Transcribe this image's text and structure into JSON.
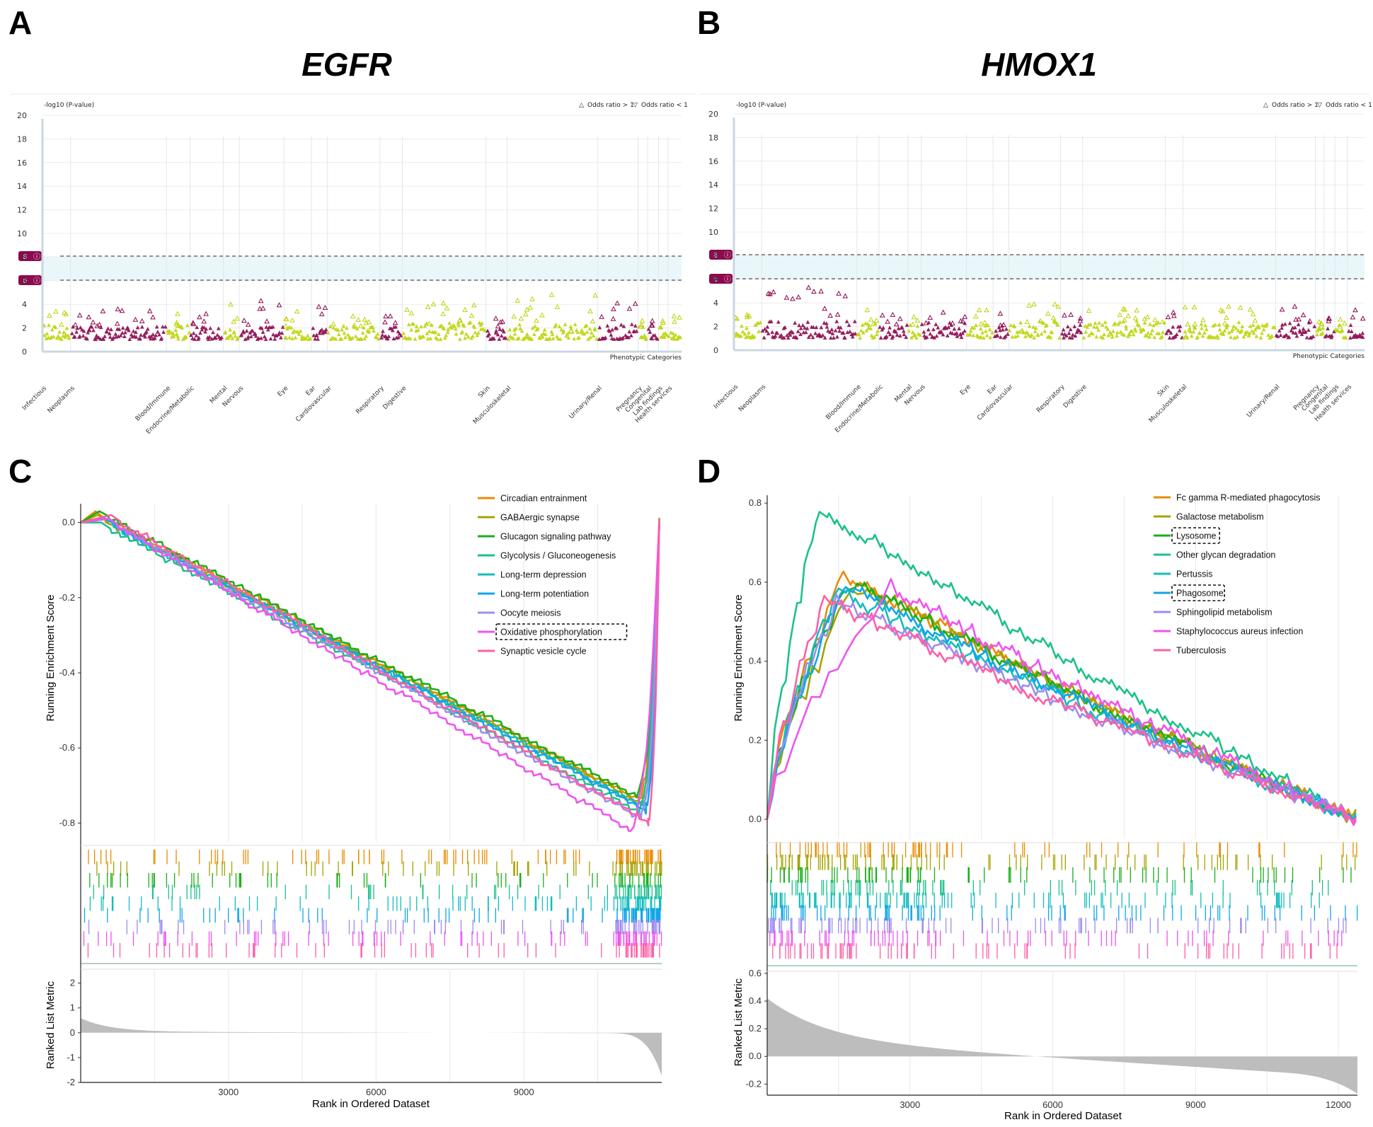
{
  "panels": {
    "A": {
      "label": "A",
      "gene": "EGFR"
    },
    "B": {
      "label": "B",
      "gene": "HMOX1"
    },
    "C": {
      "label": "C"
    },
    "D": {
      "label": "D"
    }
  },
  "phewas_common": {
    "ylabel": "-log10 (P-value)",
    "legend_up": "Odds ratio > 1",
    "legend_down": "Odds ratio < 1",
    "xlabel": "Phenotypic Categories",
    "threshold_high": "8",
    "threshold_low": "6",
    "colors": {
      "lime": "#bcd50a",
      "maroon": "#8c0a4e",
      "band": "#eaf7fa"
    }
  },
  "gsea_common": {
    "ylabel_top": "Running Enrichment Score",
    "ylabel_bottom": "Ranked List Metric",
    "xlabel": "Rank in Ordered Dataset"
  },
  "chart_data": [
    {
      "panel": "A",
      "type": "scatter",
      "title": "EGFR",
      "ylabel": "-log10 (P-value)",
      "xlabel": "Phenotypic Categories",
      "ylim": [
        0,
        20
      ],
      "yticks": [
        0,
        2,
        4,
        6,
        8,
        10,
        12,
        14,
        16,
        18,
        20
      ],
      "thresholds": [
        6,
        8
      ],
      "legend": [
        "Odds ratio > 1",
        "Odds ratio < 1"
      ],
      "categories": [
        {
          "name": "Infectious",
          "x": [
            0.0,
            0.044
          ],
          "color": "lime",
          "base": 2.2,
          "peak": 3.4
        },
        {
          "name": "Neoplasms",
          "x": [
            0.044,
            0.194
          ],
          "color": "maroon",
          "base": 2.0,
          "peak": 3.6
        },
        {
          "name": "Blood/Immune",
          "x": [
            0.194,
            0.231
          ],
          "color": "lime",
          "base": 2.2,
          "peak": 3.2
        },
        {
          "name": "Endocrine/Metabolic",
          "x": [
            0.231,
            0.283
          ],
          "color": "maroon",
          "base": 2.0,
          "peak": 3.2
        },
        {
          "name": "Mental",
          "x": [
            0.283,
            0.308
          ],
          "color": "lime",
          "base": 2.0,
          "peak": 4.0
        },
        {
          "name": "Nervous",
          "x": [
            0.308,
            0.378
          ],
          "color": "maroon",
          "base": 2.0,
          "peak": 4.3
        },
        {
          "name": "Eye",
          "x": [
            0.378,
            0.421
          ],
          "color": "lime",
          "base": 2.0,
          "peak": 3.4
        },
        {
          "name": "Ear",
          "x": [
            0.421,
            0.446
          ],
          "color": "maroon",
          "base": 2.0,
          "peak": 3.8
        },
        {
          "name": "Cardiovascular",
          "x": [
            0.446,
            0.528
          ],
          "color": "lime",
          "base": 2.1,
          "peak": 3.0
        },
        {
          "name": "Respiratory",
          "x": [
            0.528,
            0.563
          ],
          "color": "maroon",
          "base": 2.0,
          "peak": 3.0
        },
        {
          "name": "Digestive",
          "x": [
            0.563,
            0.694
          ],
          "color": "lime",
          "base": 2.3,
          "peak": 4.1
        },
        {
          "name": "Skin",
          "x": [
            0.694,
            0.727
          ],
          "color": "maroon",
          "base": 2.0,
          "peak": 2.8
        },
        {
          "name": "Musculoskeletal",
          "x": [
            0.727,
            0.869
          ],
          "color": "lime",
          "base": 2.2,
          "peak": 4.8
        },
        {
          "name": "Urinary/Renal",
          "x": [
            0.869,
            0.932
          ],
          "color": "maroon",
          "base": 2.2,
          "peak": 4.1
        },
        {
          "name": "Pregnancy",
          "x": [
            0.932,
            0.947
          ],
          "color": "lime",
          "base": 2.0,
          "peak": 2.6
        },
        {
          "name": "Congenital",
          "x": [
            0.947,
            0.964
          ],
          "color": "maroon",
          "base": 2.0,
          "peak": 2.6
        },
        {
          "name": "Lab findings",
          "x": [
            0.964,
            0.979
          ],
          "color": "lime",
          "base": 2.0,
          "peak": 2.6
        },
        {
          "name": "Health services",
          "x": [
            0.979,
            1.0
          ],
          "color": "lime",
          "base": 2.0,
          "peak": 3.0
        }
      ]
    },
    {
      "panel": "B",
      "type": "scatter",
      "title": "HMOX1",
      "ylabel": "-log10 (P-value)",
      "xlabel": "Phenotypic Categories",
      "ylim": [
        0,
        20
      ],
      "yticks": [
        0,
        2,
        4,
        6,
        8,
        10,
        12,
        14,
        16,
        18,
        20
      ],
      "thresholds": [
        6,
        8
      ],
      "legend": [
        "Odds ratio > 1",
        "Odds ratio < 1"
      ],
      "categories": [
        {
          "name": "Infectious",
          "x": [
            0.0,
            0.044
          ],
          "color": "lime",
          "base": 2.2,
          "peak": 3.0
        },
        {
          "name": "Neoplasms",
          "x": [
            0.044,
            0.195
          ],
          "color": "maroon",
          "base": 2.3,
          "peak": 5.3
        },
        {
          "name": "Blood/Immune",
          "x": [
            0.195,
            0.23
          ],
          "color": "lime",
          "base": 2.2,
          "peak": 3.4
        },
        {
          "name": "Endocrine/Metabolic",
          "x": [
            0.23,
            0.276
          ],
          "color": "maroon",
          "base": 2.0,
          "peak": 3.0
        },
        {
          "name": "Mental",
          "x": [
            0.276,
            0.297
          ],
          "color": "lime",
          "base": 2.0,
          "peak": 2.8
        },
        {
          "name": "Nervous",
          "x": [
            0.297,
            0.369
          ],
          "color": "maroon",
          "base": 2.2,
          "peak": 3.2
        },
        {
          "name": "Eye",
          "x": [
            0.369,
            0.411
          ],
          "color": "lime",
          "base": 2.0,
          "peak": 3.4
        },
        {
          "name": "Ear",
          "x": [
            0.411,
            0.436
          ],
          "color": "maroon",
          "base": 2.0,
          "peak": 3.1
        },
        {
          "name": "Cardiovascular",
          "x": [
            0.436,
            0.518
          ],
          "color": "lime",
          "base": 2.3,
          "peak": 3.9
        },
        {
          "name": "Respiratory",
          "x": [
            0.518,
            0.553
          ],
          "color": "maroon",
          "base": 2.0,
          "peak": 3.0
        },
        {
          "name": "Digestive",
          "x": [
            0.553,
            0.684
          ],
          "color": "lime",
          "base": 2.3,
          "peak": 3.5
        },
        {
          "name": "Skin",
          "x": [
            0.684,
            0.712
          ],
          "color": "maroon",
          "base": 2.0,
          "peak": 3.2
        },
        {
          "name": "Musculoskeletal",
          "x": [
            0.712,
            0.859
          ],
          "color": "lime",
          "base": 2.2,
          "peak": 3.7
        },
        {
          "name": "Urinary/Renal",
          "x": [
            0.859,
            0.922
          ],
          "color": "maroon",
          "base": 2.2,
          "peak": 3.7
        },
        {
          "name": "Pregnancy",
          "x": [
            0.922,
            0.936
          ],
          "color": "lime",
          "base": 2.0,
          "peak": 2.4
        },
        {
          "name": "Congenital",
          "x": [
            0.936,
            0.953
          ],
          "color": "maroon",
          "base": 2.0,
          "peak": 2.7
        },
        {
          "name": "Lab findings",
          "x": [
            0.953,
            0.973
          ],
          "color": "lime",
          "base": 2.0,
          "peak": 2.6
        },
        {
          "name": "Health services",
          "x": [
            0.973,
            1.0
          ],
          "color": "maroon",
          "base": 2.0,
          "peak": 3.4
        }
      ]
    },
    {
      "panel": "C",
      "type": "line",
      "ylabel": "Running Enrichment Score",
      "xlabel": "Rank in Ordered Dataset",
      "xlim": [
        0,
        11800
      ],
      "ylim": [
        -0.85,
        0.05
      ],
      "yticks": [
        0.0,
        -0.2,
        -0.4,
        -0.6,
        -0.8
      ],
      "xticks": [
        3000,
        6000,
        9000
      ],
      "metric_ylim": [
        -2,
        2.5
      ],
      "metric_yticks": [
        2,
        1,
        0,
        -1,
        -2
      ],
      "highlighted": "Oxidative phosphorylation",
      "series": [
        {
          "name": "Circadian entrainment",
          "color": "#ea8a00",
          "min_x": 11300,
          "min_y": -0.73,
          "start_peak": 0.03
        },
        {
          "name": "GABAergic synapse",
          "color": "#a3a300",
          "min_x": 11350,
          "min_y": -0.74,
          "start_peak": 0.02
        },
        {
          "name": "Glucagon signaling pathway",
          "color": "#1aae1a",
          "min_x": 11250,
          "min_y": -0.72,
          "start_peak": 0.03
        },
        {
          "name": "Glycolysis / Gluconeogenesis",
          "color": "#1ec08a",
          "min_x": 11300,
          "min_y": -0.76,
          "start_peak": 0.0
        },
        {
          "name": "Long-term depression",
          "color": "#14bdbd",
          "min_x": 11400,
          "min_y": -0.75,
          "start_peak": 0.01
        },
        {
          "name": "Long-term potentiation",
          "color": "#10a6e8",
          "min_x": 11450,
          "min_y": -0.76,
          "start_peak": 0.01
        },
        {
          "name": "Oocyte meiosis",
          "color": "#9e8cf0",
          "min_x": 11350,
          "min_y": -0.78,
          "start_peak": 0.01
        },
        {
          "name": "Oxidative phosphorylation",
          "color": "#ee55ee",
          "min_x": 11100,
          "min_y": -0.81,
          "start_peak": 0.01
        },
        {
          "name": "Synaptic vesicle cycle",
          "color": "#ff5fa6",
          "min_x": 11500,
          "min_y": -0.79,
          "start_peak": 0.02
        }
      ]
    },
    {
      "panel": "D",
      "type": "line",
      "ylabel": "Running Enrichment Score",
      "xlabel": "Rank in Ordered Dataset",
      "xlim": [
        0,
        12400
      ],
      "ylim": [
        -0.05,
        0.82
      ],
      "yticks": [
        0.0,
        0.2,
        0.4,
        0.6,
        0.8
      ],
      "xticks": [
        3000,
        6000,
        9000,
        12000
      ],
      "metric_ylim": [
        -0.28,
        0.62
      ],
      "metric_yticks": [
        0.6,
        0.4,
        0.2,
        0.0,
        -0.2
      ],
      "highlighted": [
        "Lysosome",
        "Phagosome"
      ],
      "series": [
        {
          "name": "Fc gamma R-mediated phagocytosis",
          "color": "#ea8a00",
          "peak_x": 1600,
          "peak_y": 0.61
        },
        {
          "name": "Galactose metabolism",
          "color": "#a3a300",
          "peak_x": 1900,
          "peak_y": 0.59
        },
        {
          "name": "Lysosome",
          "color": "#1aae1a",
          "peak_x": 1700,
          "peak_y": 0.6
        },
        {
          "name": "Other glycan degradation",
          "color": "#1ec08a",
          "peak_x": 1100,
          "peak_y": 0.78
        },
        {
          "name": "Pertussis",
          "color": "#14bdbd",
          "peak_x": 1500,
          "peak_y": 0.57
        },
        {
          "name": "Phagosome",
          "color": "#10a6e8",
          "peak_x": 1650,
          "peak_y": 0.58
        },
        {
          "name": "Sphingolipid metabolism",
          "color": "#9e8cf0",
          "peak_x": 1450,
          "peak_y": 0.55
        },
        {
          "name": "Staphylococcus aureus infection",
          "color": "#ee55ee",
          "peak_x": 2600,
          "peak_y": 0.58
        },
        {
          "name": "Tuberculosis",
          "color": "#ff5fa6",
          "peak_x": 1200,
          "peak_y": 0.55
        }
      ]
    }
  ]
}
